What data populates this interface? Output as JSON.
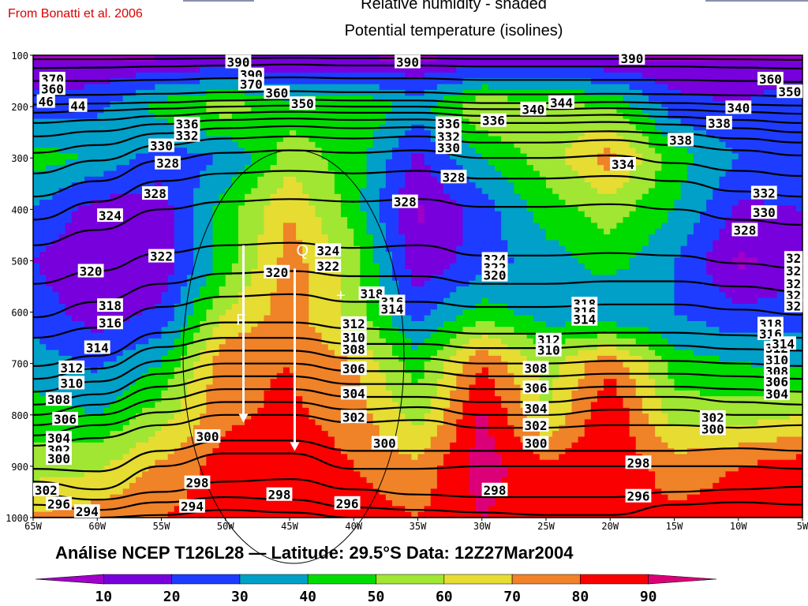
{
  "citation": "From Bonatti et al. 2006",
  "titles": {
    "line1": "Relative humidity - shaded",
    "line2": "Potential temperature (isolines)"
  },
  "footer": "Análise NCEP T126L28 — Latitude: 29.5°S     Data: 12Z27Mar2004",
  "colors": {
    "rh": [
      "#a000c8",
      "#7800dc",
      "#1e3cff",
      "#00a0c8",
      "#00dc00",
      "#a0e632",
      "#e6dc32",
      "#f08228",
      "#fa0000",
      "#dc0078"
    ],
    "theta_line": "#000000",
    "rh_line": "#ffffff",
    "annotation": "#ffffff",
    "citation": "#d80000"
  },
  "chart_data": {
    "type": "heatmap",
    "title": "Relative humidity - shaded\nPotential temperature (isolines)",
    "x": {
      "ticks": [
        "65W",
        "60W",
        "55W",
        "50W",
        "45W",
        "40W",
        "35W",
        "30W",
        "25W",
        "20W",
        "15W",
        "10W",
        "5W"
      ],
      "range_deg_w": [
        65,
        5
      ]
    },
    "y": {
      "ticks": [
        "100",
        "200",
        "300",
        "400",
        "500",
        "600",
        "700",
        "800",
        "900",
        "1000"
      ],
      "range_hpa": [
        100,
        1000
      ],
      "inverted": true
    },
    "colorbar": {
      "levels": [
        10,
        20,
        30,
        40,
        50,
        60,
        70,
        80,
        90
      ],
      "colors": [
        "#a000c8",
        "#7800dc",
        "#1e3cff",
        "#00a0c8",
        "#00dc00",
        "#a0e632",
        "#e6dc32",
        "#f08228",
        "#fa0000",
        "#dc0078"
      ]
    },
    "rh_field": {
      "lon": [
        65,
        60,
        55,
        50,
        45,
        40,
        35,
        30,
        25,
        20,
        15,
        10,
        5
      ],
      "p": [
        100,
        200,
        300,
        400,
        500,
        600,
        700,
        800,
        900,
        1000
      ],
      "values": [
        [
          8,
          8,
          8,
          8,
          8,
          8,
          8,
          8,
          8,
          8,
          8,
          8,
          8
        ],
        [
          25,
          28,
          45,
          55,
          45,
          50,
          35,
          60,
          55,
          50,
          25,
          20,
          30
        ],
        [
          45,
          38,
          25,
          30,
          55,
          45,
          18,
          40,
          55,
          75,
          45,
          30,
          25
        ],
        [
          30,
          15,
          15,
          45,
          70,
          45,
          8,
          25,
          45,
          55,
          40,
          18,
          20
        ],
        [
          20,
          12,
          12,
          45,
          75,
          55,
          12,
          25,
          35,
          45,
          30,
          8,
          15
        ],
        [
          25,
          15,
          22,
          60,
          75,
          55,
          25,
          45,
          35,
          30,
          30,
          22,
          25
        ],
        [
          35,
          28,
          40,
          78,
          80,
          70,
          45,
          80,
          55,
          78,
          45,
          40,
          38
        ],
        [
          45,
          40,
          55,
          78,
          82,
          75,
          55,
          92,
          60,
          90,
          55,
          55,
          60
        ],
        [
          55,
          58,
          72,
          85,
          88,
          80,
          72,
          95,
          82,
          88,
          75,
          80,
          85
        ],
        [
          72,
          75,
          80,
          85,
          82,
          85,
          80,
          90,
          85,
          85,
          82,
          85,
          88
        ]
      ]
    },
    "theta_isolines": [
      {
        "level": 294,
        "p": [
          1000,
          1000,
          995,
          985,
          990,
          1000,
          1000,
          1000,
          1000,
          1000,
          1000,
          1000,
          1000
        ]
      },
      {
        "level": 296,
        "p": [
          975,
          985,
          970,
          960,
          965,
          980,
          985,
          990,
          995,
          995,
          975,
          970,
          975
        ]
      },
      {
        "level": 298,
        "p": [
          955,
          965,
          950,
          930,
          925,
          945,
          955,
          960,
          960,
          960,
          950,
          945,
          940
        ]
      },
      {
        "level": 300,
        "p": [
          930,
          945,
          900,
          875,
          875,
          905,
          905,
          900,
          900,
          900,
          900,
          900,
          905
        ]
      },
      {
        "level": 302,
        "p": [
          905,
          910,
          870,
          850,
          850,
          870,
          870,
          870,
          870,
          870,
          870,
          865,
          870
        ]
      },
      {
        "level": 304,
        "p": [
          860,
          845,
          820,
          800,
          800,
          815,
          810,
          825,
          825,
          820,
          820,
          825,
          820
        ]
      },
      {
        "level": 306,
        "p": [
          840,
          820,
          795,
          775,
          775,
          790,
          785,
          800,
          800,
          790,
          790,
          800,
          800
        ]
      },
      {
        "level": 308,
        "p": [
          820,
          800,
          770,
          750,
          750,
          765,
          765,
          775,
          775,
          765,
          765,
          775,
          780
        ]
      },
      {
        "level": 310,
        "p": [
          800,
          780,
          745,
          725,
          725,
          740,
          740,
          750,
          750,
          745,
          745,
          750,
          755
        ]
      },
      {
        "level": 312,
        "p": [
          780,
          760,
          720,
          700,
          700,
          715,
          715,
          725,
          725,
          720,
          720,
          725,
          730
        ]
      },
      {
        "level": 314,
        "p": [
          755,
          735,
          695,
          675,
          675,
          690,
          690,
          700,
          700,
          695,
          695,
          700,
          705
        ]
      },
      {
        "level": 316,
        "p": [
          730,
          710,
          668,
          650,
          650,
          662,
          662,
          670,
          670,
          665,
          665,
          672,
          675
        ]
      },
      {
        "level": 318,
        "p": [
          705,
          685,
          640,
          620,
          620,
          632,
          635,
          642,
          642,
          640,
          640,
          645,
          650
        ]
      },
      {
        "level": 320,
        "p": [
          650,
          630,
          590,
          570,
          565,
          580,
          580,
          590,
          590,
          585,
          585,
          595,
          605
        ]
      },
      {
        "level": 322,
        "p": [
          610,
          580,
          545,
          525,
          520,
          530,
          530,
          545,
          545,
          540,
          540,
          550,
          560
        ]
      },
      {
        "level": 324,
        "p": [
          545,
          520,
          485,
          470,
          465,
          475,
          470,
          490,
          490,
          485,
          490,
          505,
          515
        ]
      },
      {
        "level": 328,
        "p": [
          470,
          440,
          400,
          385,
          380,
          385,
          380,
          395,
          395,
          390,
          400,
          420,
          430
        ]
      },
      {
        "level": 330,
        "p": [
          420,
          385,
          345,
          330,
          325,
          330,
          325,
          340,
          340,
          335,
          345,
          365,
          375
        ]
      },
      {
        "level": 332,
        "p": [
          375,
          345,
          305,
          290,
          285,
          290,
          285,
          300,
          300,
          295,
          310,
          325,
          335
        ]
      },
      {
        "level": 334,
        "p": [
          330,
          305,
          275,
          262,
          258,
          262,
          258,
          270,
          270,
          265,
          275,
          285,
          295
        ]
      },
      {
        "level": 336,
        "p": [
          290,
          275,
          252,
          242,
          238,
          242,
          240,
          250,
          250,
          248,
          252,
          262,
          270
        ]
      },
      {
        "level": 338,
        "p": [
          258,
          248,
          234,
          226,
          223,
          226,
          225,
          232,
          232,
          230,
          235,
          242,
          250
        ]
      },
      {
        "level": 340,
        "p": [
          232,
          226,
          218,
          212,
          210,
          212,
          212,
          218,
          218,
          216,
          220,
          226,
          232
        ]
      },
      {
        "level": 344,
        "p": [
          212,
          208,
          204,
          200,
          198,
          200,
          200,
          205,
          205,
          203,
          206,
          210,
          214
        ]
      },
      {
        "level": 350,
        "p": [
          196,
          194,
          192,
          188,
          186,
          188,
          188,
          193,
          193,
          191,
          193,
          196,
          198
        ]
      },
      {
        "level": 360,
        "p": [
          178,
          177,
          175,
          172,
          170,
          172,
          172,
          176,
          176,
          175,
          176,
          178,
          180
        ]
      },
      {
        "level": 370,
        "p": [
          150,
          150,
          148,
          145,
          143,
          145,
          145,
          148,
          148,
          148,
          148,
          150,
          152
        ]
      },
      {
        "level": 380,
        "p": [
          125,
          124,
          122,
          120,
          118,
          120,
          120,
          122,
          122,
          122,
          122,
          124,
          126
        ]
      },
      {
        "level": 390,
        "p": [
          108,
          108,
          107,
          106,
          105,
          106,
          106,
          107,
          107,
          107,
          107,
          108,
          109
        ]
      }
    ],
    "contour_labels": [
      {
        "text": "390",
        "lon": 49.0,
        "p": 113
      },
      {
        "text": "390",
        "lon": 35.8,
        "p": 113
      },
      {
        "text": "390",
        "lon": 18.3,
        "p": 106
      },
      {
        "text": "370",
        "lon": 63.5,
        "p": 146
      },
      {
        "text": "360",
        "lon": 63.5,
        "p": 165
      },
      {
        "text": "390",
        "lon": 48.0,
        "p": 138
      },
      {
        "text": "370",
        "lon": 48.0,
        "p": 156
      },
      {
        "text": "360",
        "lon": 46.0,
        "p": 173
      },
      {
        "text": "350",
        "lon": 44.0,
        "p": 194
      },
      {
        "text": "344",
        "lon": 23.8,
        "p": 192
      },
      {
        "text": "340",
        "lon": 26.0,
        "p": 205
      },
      {
        "text": "360",
        "lon": 7.5,
        "p": 146
      },
      {
        "text": "350",
        "lon": 6.0,
        "p": 171
      },
      {
        "text": "340",
        "lon": 10.0,
        "p": 202
      },
      {
        "text": "338",
        "lon": 11.5,
        "p": 232
      },
      {
        "text": "338",
        "lon": 14.5,
        "p": 265
      },
      {
        "text": "336",
        "lon": 53.0,
        "p": 234
      },
      {
        "text": "332",
        "lon": 53.0,
        "p": 256
      },
      {
        "text": "330",
        "lon": 55.0,
        "p": 276
      },
      {
        "text": "328",
        "lon": 54.5,
        "p": 310
      },
      {
        "text": "336",
        "lon": 32.6,
        "p": 233
      },
      {
        "text": "336",
        "lon": 29.1,
        "p": 227
      },
      {
        "text": "332",
        "lon": 32.6,
        "p": 258
      },
      {
        "text": "330",
        "lon": 32.6,
        "p": 280
      },
      {
        "text": "334",
        "lon": 19.0,
        "p": 312
      },
      {
        "text": "328",
        "lon": 32.2,
        "p": 337
      },
      {
        "text": "328",
        "lon": 55.5,
        "p": 369
      },
      {
        "text": "328",
        "lon": 36.0,
        "p": 385
      },
      {
        "text": "324",
        "lon": 59.0,
        "p": 412
      },
      {
        "text": "332",
        "lon": 8.0,
        "p": 368
      },
      {
        "text": "330",
        "lon": 8.0,
        "p": 406
      },
      {
        "text": "328",
        "lon": 9.5,
        "p": 440
      },
      {
        "text": "324",
        "lon": 42.0,
        "p": 480
      },
      {
        "text": "322",
        "lon": 55.0,
        "p": 491
      },
      {
        "text": "322",
        "lon": 42.0,
        "p": 510
      },
      {
        "text": "320",
        "lon": 60.5,
        "p": 520
      },
      {
        "text": "320",
        "lon": 46.0,
        "p": 522
      },
      {
        "text": "324",
        "lon": 29.0,
        "p": 497
      },
      {
        "text": "322",
        "lon": 29.0,
        "p": 513
      },
      {
        "text": "320",
        "lon": 29.0,
        "p": 528
      },
      {
        "text": "318",
        "lon": 38.6,
        "p": 564
      },
      {
        "text": "316",
        "lon": 37.0,
        "p": 580
      },
      {
        "text": "314",
        "lon": 37.0,
        "p": 594
      },
      {
        "text": "318",
        "lon": 59.0,
        "p": 587
      },
      {
        "text": "316",
        "lon": 59.0,
        "p": 621
      },
      {
        "text": "314",
        "lon": 60.0,
        "p": 669
      },
      {
        "text": "318",
        "lon": 22.0,
        "p": 584
      },
      {
        "text": "316",
        "lon": 22.0,
        "p": 599
      },
      {
        "text": "314",
        "lon": 22.0,
        "p": 614
      },
      {
        "text": "312",
        "lon": 40.0,
        "p": 622
      },
      {
        "text": "310",
        "lon": 40.0,
        "p": 649
      },
      {
        "text": "308",
        "lon": 40.0,
        "p": 672
      },
      {
        "text": "306",
        "lon": 40.0,
        "p": 710
      },
      {
        "text": "304",
        "lon": 40.0,
        "p": 758
      },
      {
        "text": "302",
        "lon": 40.0,
        "p": 804
      },
      {
        "text": "300",
        "lon": 37.6,
        "p": 855
      },
      {
        "text": "312",
        "lon": 24.8,
        "p": 654
      },
      {
        "text": "310",
        "lon": 24.8,
        "p": 674
      },
      {
        "text": "308",
        "lon": 25.8,
        "p": 709
      },
      {
        "text": "306",
        "lon": 25.8,
        "p": 747
      },
      {
        "text": "304",
        "lon": 25.8,
        "p": 787
      },
      {
        "text": "302",
        "lon": 25.8,
        "p": 820
      },
      {
        "text": "300",
        "lon": 25.8,
        "p": 855
      },
      {
        "text": "312",
        "lon": 62.0,
        "p": 708
      },
      {
        "text": "310",
        "lon": 62.0,
        "p": 738
      },
      {
        "text": "308",
        "lon": 63.0,
        "p": 770
      },
      {
        "text": "306",
        "lon": 62.5,
        "p": 808
      },
      {
        "text": "304",
        "lon": 63.0,
        "p": 845
      },
      {
        "text": "302",
        "lon": 63.0,
        "p": 868
      },
      {
        "text": "300",
        "lon": 63.0,
        "p": 885
      },
      {
        "text": "312",
        "lon": 7.0,
        "p": 670
      },
      {
        "text": "310",
        "lon": 7.0,
        "p": 693
      },
      {
        "text": "308",
        "lon": 7.0,
        "p": 715
      },
      {
        "text": "306",
        "lon": 7.0,
        "p": 735
      },
      {
        "text": "304",
        "lon": 7.0,
        "p": 759
      },
      {
        "text": "318",
        "lon": 7.5,
        "p": 623
      },
      {
        "text": "316",
        "lon": 7.5,
        "p": 642
      },
      {
        "text": "314",
        "lon": 6.5,
        "p": 661
      },
      {
        "text": "302",
        "lon": 12.0,
        "p": 805
      },
      {
        "text": "300",
        "lon": 12.0,
        "p": 827
      },
      {
        "text": "300",
        "lon": 51.4,
        "p": 842
      },
      {
        "text": "298",
        "lon": 17.8,
        "p": 893
      },
      {
        "text": "298",
        "lon": 29.0,
        "p": 946
      },
      {
        "text": "298",
        "lon": 52.2,
        "p": 932
      },
      {
        "text": "298",
        "lon": 45.8,
        "p": 955
      },
      {
        "text": "296",
        "lon": 17.8,
        "p": 958
      },
      {
        "text": "294",
        "lon": 52.6,
        "p": 978
      },
      {
        "text": "296",
        "lon": 40.5,
        "p": 972
      },
      {
        "text": "296",
        "lon": 63.0,
        "p": 973
      },
      {
        "text": "294",
        "lon": 60.8,
        "p": 988
      },
      {
        "text": "302",
        "lon": 64.0,
        "p": 946
      },
      {
        "text": "32",
        "lon": 5.7,
        "p": 495
      },
      {
        "text": "32",
        "lon": 5.7,
        "p": 519
      },
      {
        "text": "32",
        "lon": 5.7,
        "p": 545
      },
      {
        "text": "32",
        "lon": 5.7,
        "p": 567
      },
      {
        "text": "32",
        "lon": 5.7,
        "p": 588
      },
      {
        "text": "44",
        "lon": 61.5,
        "p": 198
      },
      {
        "text": "46",
        "lon": 64.0,
        "p": 190
      }
    ],
    "annotations": [
      {
        "text": "Q",
        "lon": 44.0,
        "p": 490
      },
      {
        "text": "+",
        "lon": 41.0,
        "p": 578
      },
      {
        "text": "F",
        "lon": 48.8,
        "p": 625
      }
    ]
  }
}
